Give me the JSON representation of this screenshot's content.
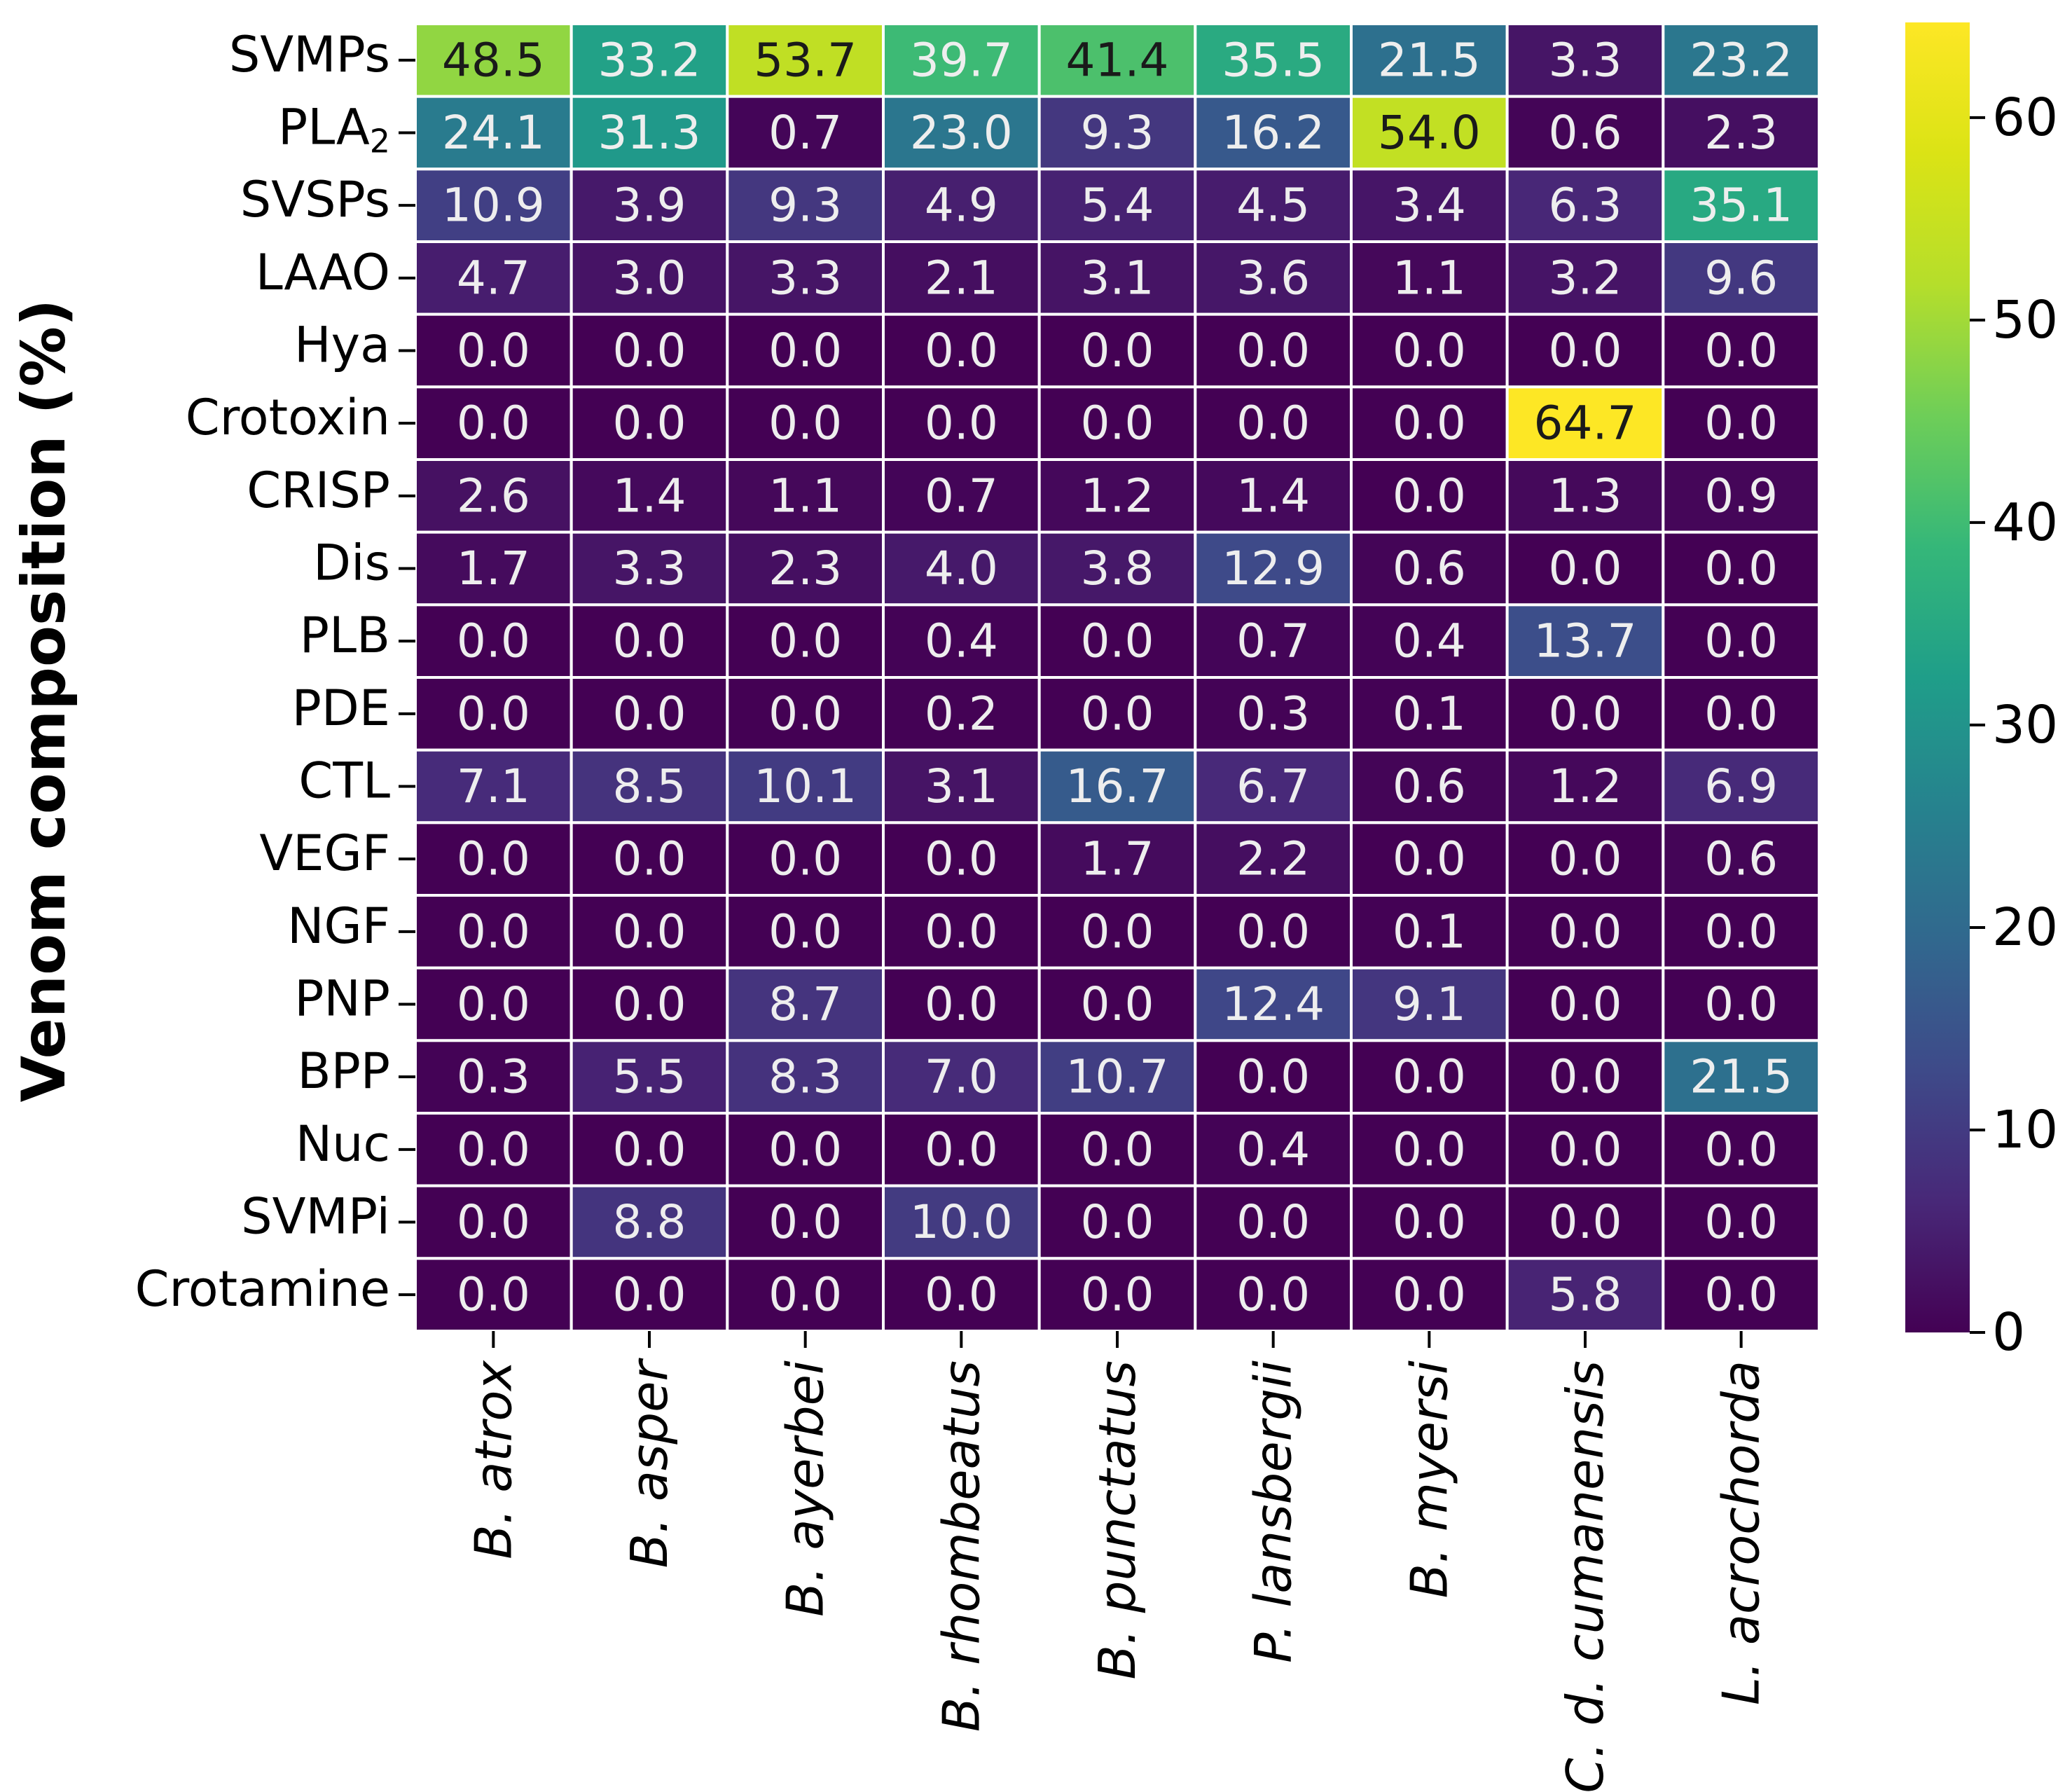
{
  "chart_data": {
    "type": "heatmap",
    "title": "",
    "xlabel": "",
    "ylabel": "Venom composition (%)",
    "rows": [
      {
        "label": "SVMPs",
        "main": "SVMPs",
        "sub": ""
      },
      {
        "label": "PLA2",
        "main": "PLA",
        "sub": "2"
      },
      {
        "label": "SVSPs",
        "main": "SVSPs",
        "sub": ""
      },
      {
        "label": "LAAO",
        "main": "LAAO",
        "sub": ""
      },
      {
        "label": "Hya",
        "main": "Hya",
        "sub": ""
      },
      {
        "label": "Crotoxin",
        "main": "Crotoxin",
        "sub": ""
      },
      {
        "label": "CRISP",
        "main": "CRISP",
        "sub": ""
      },
      {
        "label": "Dis",
        "main": "Dis",
        "sub": ""
      },
      {
        "label": "PLB",
        "main": "PLB",
        "sub": ""
      },
      {
        "label": "PDE",
        "main": "PDE",
        "sub": ""
      },
      {
        "label": "CTL",
        "main": "CTL",
        "sub": ""
      },
      {
        "label": "VEGF",
        "main": "VEGF",
        "sub": ""
      },
      {
        "label": "NGF",
        "main": "NGF",
        "sub": ""
      },
      {
        "label": "PNP",
        "main": "PNP",
        "sub": ""
      },
      {
        "label": "BPP",
        "main": "BPP",
        "sub": ""
      },
      {
        "label": "Nuc",
        "main": "Nuc",
        "sub": ""
      },
      {
        "label": "SVMPi",
        "main": "SVMPi",
        "sub": ""
      },
      {
        "label": "Crotamine",
        "main": "Crotamine",
        "sub": ""
      }
    ],
    "columns": [
      "B. atrox",
      "B. asper",
      "B. ayerbei",
      "B. rhombeatus",
      "B. punctatus",
      "P. lansbergii",
      "B. myersi",
      "C. d. cumanensis",
      "L. acrochorda"
    ],
    "values": [
      [
        "48.5",
        "33.2",
        "53.7",
        "39.7",
        "41.4",
        "35.5",
        "21.5",
        "3.3",
        "23.2"
      ],
      [
        "24.1",
        "31.3",
        "0.7",
        "23.0",
        "9.3",
        "16.2",
        "54.0",
        "0.6",
        "2.3"
      ],
      [
        "10.9",
        "3.9",
        "9.3",
        "4.9",
        "5.4",
        "4.5",
        "3.4",
        "6.3",
        "35.1"
      ],
      [
        "4.7",
        "3.0",
        "3.3",
        "2.1",
        "3.1",
        "3.6",
        "1.1",
        "3.2",
        "9.6"
      ],
      [
        "0.0",
        "0.0",
        "0.0",
        "0.0",
        "0.0",
        "0.0",
        "0.0",
        "0.0",
        "0.0"
      ],
      [
        "0.0",
        "0.0",
        "0.0",
        "0.0",
        "0.0",
        "0.0",
        "0.0",
        "64.7",
        "0.0"
      ],
      [
        "2.6",
        "1.4",
        "1.1",
        "0.7",
        "1.2",
        "1.4",
        "0.0",
        "1.3",
        "0.9"
      ],
      [
        "1.7",
        "3.3",
        "2.3",
        "4.0",
        "3.8",
        "12.9",
        "0.6",
        "0.0",
        "0.0"
      ],
      [
        "0.0",
        "0.0",
        "0.0",
        "0.4",
        "0.0",
        "0.7",
        "0.4",
        "13.7",
        "0.0"
      ],
      [
        "0.0",
        "0.0",
        "0.0",
        "0.2",
        "0.0",
        "0.3",
        "0.1",
        "0.0",
        "0.0"
      ],
      [
        "7.1",
        "8.5",
        "10.1",
        "3.1",
        "16.7",
        "6.7",
        "0.6",
        "1.2",
        "6.9"
      ],
      [
        "0.0",
        "0.0",
        "0.0",
        "0.0",
        "1.7",
        "2.2",
        "0.0",
        "0.0",
        "0.6"
      ],
      [
        "0.0",
        "0.0",
        "0.0",
        "0.0",
        "0.0",
        "0.0",
        "0.1",
        "0.0",
        "0.0"
      ],
      [
        "0.0",
        "0.0",
        "8.7",
        "0.0",
        "0.0",
        "12.4",
        "9.1",
        "0.0",
        "0.0"
      ],
      [
        "0.3",
        "5.5",
        "8.3",
        "7.0",
        "10.7",
        "0.0",
        "0.0",
        "0.0",
        "21.5"
      ],
      [
        "0.0",
        "0.0",
        "0.0",
        "0.0",
        "0.0",
        "0.4",
        "0.0",
        "0.0",
        "0.0"
      ],
      [
        "0.0",
        "8.8",
        "0.0",
        "10.0",
        "0.0",
        "0.0",
        "0.0",
        "0.0",
        "0.0"
      ],
      [
        "0.0",
        "0.0",
        "0.0",
        "0.0",
        "0.0",
        "0.0",
        "0.0",
        "5.8",
        "0.0"
      ]
    ],
    "colorbar": {
      "colormap": "viridis",
      "vmin": 0,
      "vmax": 64.7,
      "ticks": [
        "0",
        "10",
        "20",
        "30",
        "40",
        "50",
        "60"
      ]
    },
    "grid": false,
    "legend": "colorbar-right"
  }
}
